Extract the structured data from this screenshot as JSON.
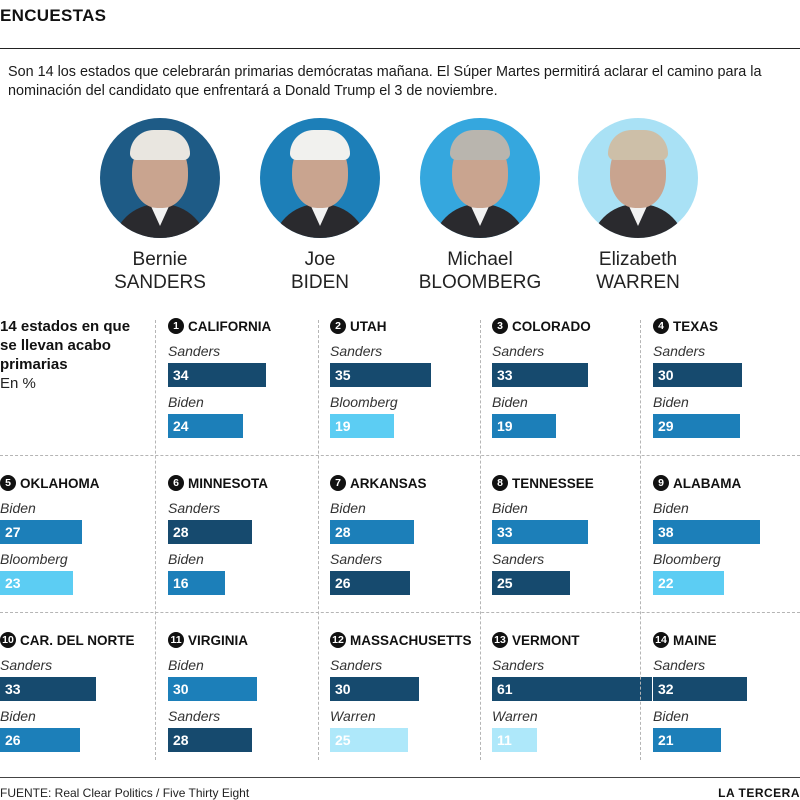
{
  "header": {
    "section": "ENCUESTAS",
    "intro": "Son 14 los estados que celebrarán primarias demócratas mañana. El Súper Martes permitirá aclarar el camino para la nominación del candidato que enfrentará a Donald Trump el 3 de noviembre."
  },
  "candidates": [
    {
      "first": "Bernie",
      "last": "SANDERS",
      "portrait_bg": "#1e5b86",
      "hair": "#e9e6e0",
      "portrait_icon": "portrait-photo"
    },
    {
      "first": "Joe",
      "last": "BIDEN",
      "portrait_bg": "#1d7fb8",
      "hair": "#f1f1ee",
      "portrait_icon": "portrait-photo"
    },
    {
      "first": "Michael",
      "last": "BLOOMBERG",
      "portrait_bg": "#35a7de",
      "hair": "#b9b5ae",
      "portrait_icon": "portrait-photo"
    },
    {
      "first": "Elizabeth",
      "last": "WARREN",
      "portrait_bg": "#a9e1f5",
      "hair": "#cdbfa8",
      "portrait_icon": "portrait-photo"
    }
  ],
  "legend": {
    "title": "14 estados en que se llevan acabo primarias",
    "unit": "En %"
  },
  "colors": {
    "Sanders": "#164a6e",
    "Biden": "#1c7fb9",
    "Bloomberg": "#5ccdf3",
    "Warren": "#aee8fa"
  },
  "chart_data": {
    "type": "bar",
    "title": "14 estados en que se llevan acabo primarias",
    "unit": "En %",
    "states": [
      {
        "rank": "1",
        "name": "CALIFORNIA",
        "polls": [
          {
            "candidate": "Sanders",
            "value": 34
          },
          {
            "candidate": "Biden",
            "value": 24
          }
        ]
      },
      {
        "rank": "2",
        "name": "UTAH",
        "polls": [
          {
            "candidate": "Sanders",
            "value": 35
          },
          {
            "candidate": "Bloomberg",
            "value": 19
          }
        ]
      },
      {
        "rank": "3",
        "name": "COLORADO",
        "polls": [
          {
            "candidate": "Sanders",
            "value": 33
          },
          {
            "candidate": "Biden",
            "value": 19
          }
        ]
      },
      {
        "rank": "4",
        "name": "TEXAS",
        "polls": [
          {
            "candidate": "Sanders",
            "value": 30
          },
          {
            "candidate": "Biden",
            "value": 29
          }
        ]
      },
      {
        "rank": "5",
        "name": "OKLAHOMA",
        "polls": [
          {
            "candidate": "Biden",
            "value": 27
          },
          {
            "candidate": "Bloomberg",
            "value": 23
          }
        ]
      },
      {
        "rank": "6",
        "name": "MINNESOTA",
        "polls": [
          {
            "candidate": "Sanders",
            "value": 28
          },
          {
            "candidate": "Biden",
            "value": 16
          }
        ]
      },
      {
        "rank": "7",
        "name": "ARKANSAS",
        "polls": [
          {
            "candidate": "Biden",
            "value": 28
          },
          {
            "candidate": "Sanders",
            "value": 26
          }
        ]
      },
      {
        "rank": "8",
        "name": "TENNESSEE",
        "polls": [
          {
            "candidate": "Biden",
            "value": 33
          },
          {
            "candidate": "Sanders",
            "value": 25
          }
        ]
      },
      {
        "rank": "9",
        "name": "ALABAMA",
        "polls": [
          {
            "candidate": "Biden",
            "value": 38
          },
          {
            "candidate": "Bloomberg",
            "value": 22
          }
        ]
      },
      {
        "rank": "10",
        "name": "CAR. DEL NORTE",
        "polls": [
          {
            "candidate": "Sanders",
            "value": 33
          },
          {
            "candidate": "Biden",
            "value": 26
          }
        ]
      },
      {
        "rank": "11",
        "name": "VIRGINIA",
        "polls": [
          {
            "candidate": "Biden",
            "value": 30
          },
          {
            "candidate": "Sanders",
            "value": 28
          }
        ]
      },
      {
        "rank": "12",
        "name": "MASSACHUSETTS",
        "polls": [
          {
            "candidate": "Sanders",
            "value": 30
          },
          {
            "candidate": "Warren",
            "value": 25
          }
        ]
      },
      {
        "rank": "13",
        "name": "VERMONT",
        "polls": [
          {
            "candidate": "Sanders",
            "value": 61
          },
          {
            "candidate": "Warren",
            "value": 11
          }
        ]
      },
      {
        "rank": "14",
        "name": "MAINE",
        "polls": [
          {
            "candidate": "Sanders",
            "value": 32
          },
          {
            "candidate": "Biden",
            "value": 21
          }
        ]
      }
    ]
  },
  "footer": {
    "source": "FUENTE: Real Clear Politics / Five Thirty Eight",
    "brand": "LA TERCERA"
  }
}
